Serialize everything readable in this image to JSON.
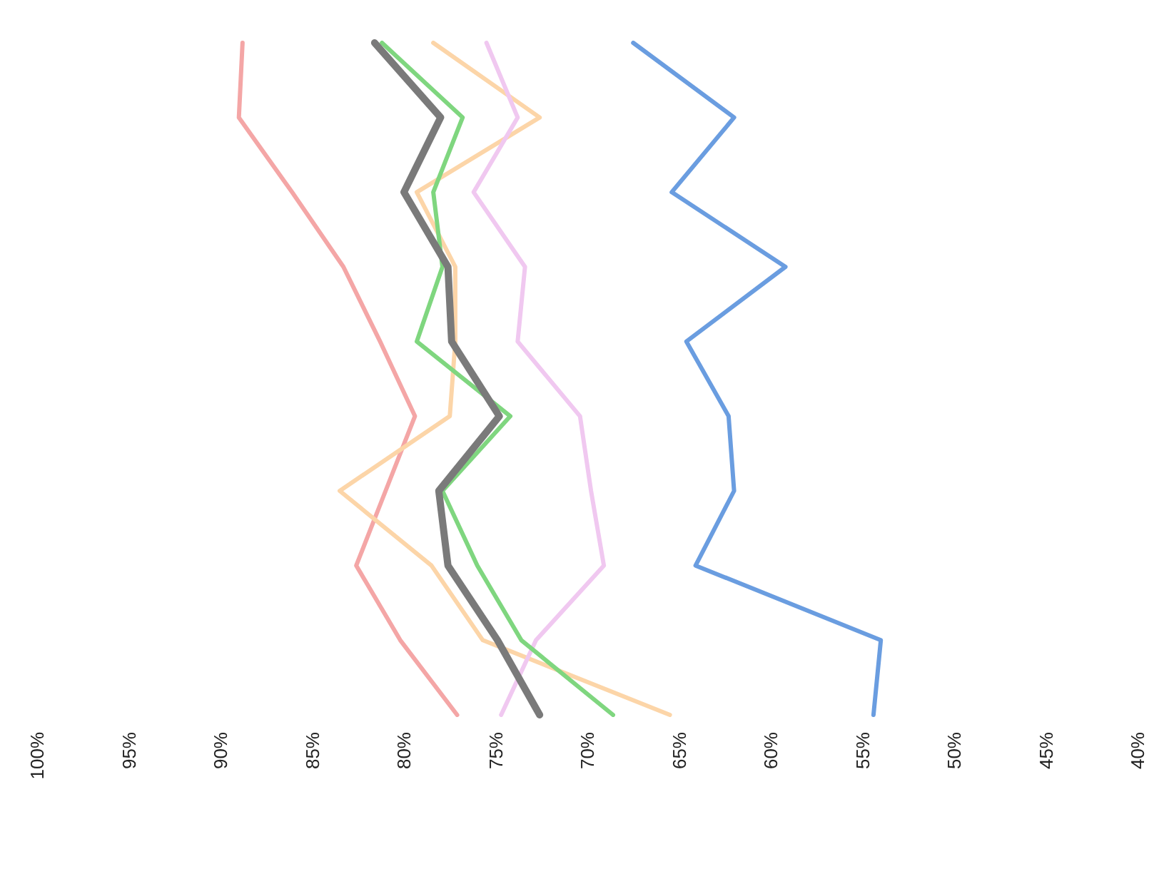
{
  "chart_data": {
    "type": "line",
    "orientation": "horizontal",
    "categories": [
      null,
      null,
      null,
      null,
      null,
      null,
      null,
      null,
      null,
      null
    ],
    "xlim": [
      100,
      40
    ],
    "xticks": [
      {
        "value": 100,
        "label": "100%"
      },
      {
        "value": 95,
        "label": "95%"
      },
      {
        "value": 90,
        "label": "90%"
      },
      {
        "value": 85,
        "label": "85%"
      },
      {
        "value": 80,
        "label": "80%"
      },
      {
        "value": 75,
        "label": "75%"
      },
      {
        "value": 70,
        "label": "70%"
      },
      {
        "value": 65,
        "label": "65%"
      },
      {
        "value": 60,
        "label": "60%"
      },
      {
        "value": 55,
        "label": "55%"
      },
      {
        "value": 50,
        "label": "50%"
      },
      {
        "value": 45,
        "label": "45%"
      },
      {
        "value": 40,
        "label": "40%"
      }
    ],
    "series": [
      {
        "color": "#f4a6a6",
        "values": [
          88.8,
          89.0,
          86.1,
          83.3,
          81.3,
          79.4,
          81.0,
          82.6,
          80.2,
          77.1
        ]
      },
      {
        "color": "#fcd5a8",
        "values": [
          78.4,
          72.6,
          79.3,
          77.2,
          77.2,
          77.5,
          83.5,
          78.5,
          75.7,
          65.5
        ]
      },
      {
        "color": "#f0c8f0",
        "values": [
          75.5,
          73.8,
          76.2,
          73.4,
          73.8,
          70.4,
          69.8,
          69.1,
          72.8,
          74.7
        ]
      },
      {
        "color": "#7fd67f",
        "values": [
          81.2,
          76.8,
          78.4,
          77.9,
          79.3,
          74.2,
          77.9,
          76.0,
          73.6,
          68.6
        ]
      },
      {
        "color": "#6a9de0",
        "values": [
          67.5,
          62.0,
          65.4,
          59.2,
          64.6,
          62.3,
          62.0,
          64.1,
          54.0,
          54.4
        ]
      },
      {
        "color": "#7a7a7a",
        "values": [
          81.6,
          78.0,
          80.0,
          77.6,
          77.4,
          74.8,
          78.1,
          77.6,
          74.9,
          72.6
        ]
      }
    ],
    "grid": false,
    "marker": "none",
    "line_style": "solid"
  }
}
